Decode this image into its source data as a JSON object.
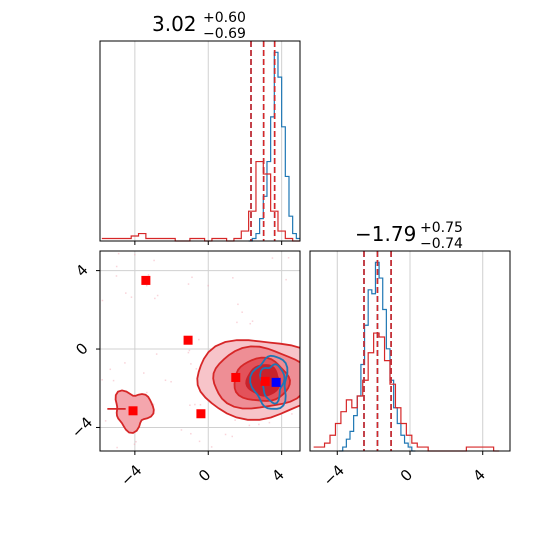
{
  "chart_data": [
    {
      "type": "histogram",
      "panel": "top-left",
      "title_main": "3.02",
      "title_plus": "+0.60",
      "title_minus": "−0.69",
      "xlim": [
        -5.9,
        5.0
      ],
      "xticks": [
        -4,
        0,
        4
      ],
      "grid": true,
      "series": [
        {
          "color": "#1f77b4",
          "bins_x": [
            2.2,
            2.4,
            2.6,
            2.8,
            3.0,
            3.2,
            3.4,
            3.6,
            3.8,
            4.0,
            4.2,
            4.4,
            4.6,
            4.8
          ],
          "counts": [
            0,
            1,
            3,
            9,
            18,
            32,
            50,
            76,
            66,
            46,
            26,
            10,
            3,
            1
          ],
          "quantiles": [
            2.33,
            3.02,
            3.62
          ]
        },
        {
          "color": "#d62728",
          "bins_x": [
            -5.8,
            -5.4,
            -5.0,
            -4.6,
            -4.2,
            -3.8,
            -3.4,
            -3.0,
            -2.6,
            -2.2,
            -1.8,
            -1.4,
            -1.0,
            -0.6,
            -0.2,
            0.2,
            0.6,
            1.0,
            1.4,
            1.8,
            2.2,
            2.6,
            3.0,
            3.4,
            3.8,
            4.2,
            4.6
          ],
          "counts": [
            1,
            1,
            1,
            1,
            2,
            3,
            1,
            1,
            1,
            1,
            0,
            0,
            1,
            1,
            0,
            1,
            1,
            0,
            1,
            4,
            12,
            32,
            27,
            12,
            4,
            1,
            0
          ],
          "quantiles": [
            2.33,
            3.02,
            3.62
          ]
        }
      ]
    },
    {
      "type": "histogram",
      "panel": "bottom-right",
      "title_main": "−1.79",
      "title_plus": "+0.75",
      "title_minus": "−0.74",
      "xlim": [
        -5.5,
        5.5
      ],
      "xticks": [
        -4,
        0,
        4
      ],
      "grid": true,
      "series": [
        {
          "color": "#1f77b4",
          "bins_x": [
            -3.9,
            -3.7,
            -3.5,
            -3.3,
            -3.1,
            -2.9,
            -2.7,
            -2.5,
            -2.3,
            -2.1,
            -1.9,
            -1.7,
            -1.5,
            -1.3,
            -1.1,
            -0.9,
            -0.7,
            -0.5,
            -0.3,
            -0.1,
            0.1
          ],
          "counts": [
            0,
            1,
            3,
            5,
            9,
            14,
            22,
            32,
            41,
            40,
            48,
            44,
            36,
            26,
            18,
            11,
            7,
            4,
            2,
            1,
            0
          ],
          "quantiles": [
            -2.53,
            -1.79,
            -1.04
          ]
        },
        {
          "color": "#d62728",
          "bins_x": [
            -5.3,
            -5.0,
            -4.7,
            -4.4,
            -4.1,
            -3.8,
            -3.5,
            -3.2,
            -2.9,
            -2.6,
            -2.3,
            -2.0,
            -1.7,
            -1.4,
            -1.1,
            -0.8,
            -0.5,
            -0.2,
            0.1,
            0.4,
            0.7,
            1.0,
            1.3,
            1.6,
            1.9,
            2.2,
            2.5,
            2.8,
            3.1,
            3.4,
            3.7,
            4.0,
            4.3,
            4.6
          ],
          "counts": [
            1,
            1,
            2,
            4,
            7,
            10,
            13,
            11,
            14,
            18,
            25,
            30,
            29,
            23,
            17,
            11,
            7,
            4,
            2,
            1,
            1,
            0,
            0,
            0,
            0,
            0,
            0,
            0,
            1,
            1,
            1,
            1,
            1,
            0
          ],
          "quantiles": [
            -2.53,
            -1.79,
            -1.04
          ]
        }
      ]
    },
    {
      "type": "scatter-contour",
      "panel": "bottom-left",
      "xlim": [
        -5.9,
        5.0
      ],
      "ylim": [
        -5.2,
        5.0
      ],
      "xticks": [
        -4,
        0,
        4
      ],
      "yticks": [
        -4,
        0,
        4
      ],
      "grid": true,
      "blue_contour_center": [
        3.4,
        -1.7
      ],
      "red_contour_main_center": [
        2.8,
        -1.5
      ],
      "red_contour_small_center": [
        -4.1,
        -3.1
      ],
      "red_markers": [
        {
          "x": -3.4,
          "y": 3.5
        },
        {
          "x": -1.1,
          "y": 0.45
        },
        {
          "x": -0.4,
          "y": -3.3
        },
        {
          "x": 1.5,
          "y": -1.45
        },
        {
          "x": 3.1,
          "y": -1.65
        },
        {
          "x": -4.1,
          "y": -3.15
        }
      ],
      "blue_markers": [
        {
          "x": 3.7,
          "y": -1.7
        }
      ]
    }
  ]
}
